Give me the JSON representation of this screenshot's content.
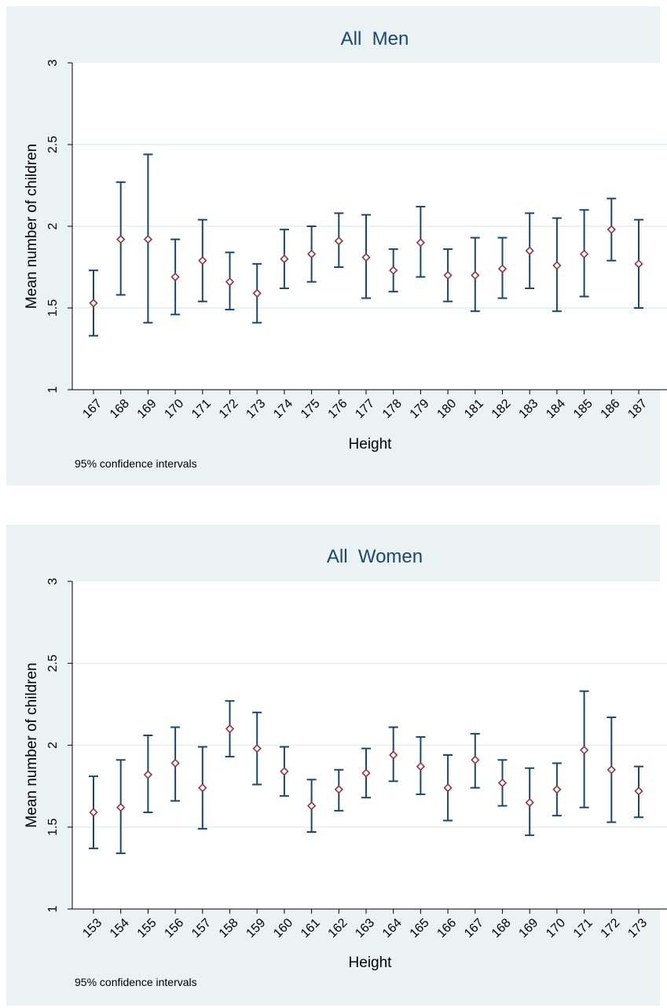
{
  "chart_data": [
    {
      "type": "errorbar",
      "title": "All  Men",
      "xlabel": "Height",
      "ylabel": "Mean number of children",
      "note": "95% confidence intervals",
      "ylim": [
        1,
        3
      ],
      "yticks": [
        "1",
        "1.5",
        "2",
        "2.5",
        "3"
      ],
      "grid": true,
      "categories": [
        "167",
        "168",
        "169",
        "170",
        "171",
        "172",
        "173",
        "174",
        "175",
        "176",
        "177",
        "178",
        "179",
        "180",
        "181",
        "182",
        "183",
        "184",
        "185",
        "186",
        "187"
      ],
      "means": [
        1.53,
        1.92,
        1.92,
        1.69,
        1.79,
        1.66,
        1.59,
        1.8,
        1.83,
        1.91,
        1.81,
        1.73,
        1.9,
        1.7,
        1.7,
        1.74,
        1.85,
        1.76,
        1.83,
        1.98,
        1.77
      ],
      "lower": [
        1.33,
        1.58,
        1.41,
        1.46,
        1.54,
        1.49,
        1.41,
        1.62,
        1.66,
        1.75,
        1.56,
        1.6,
        1.69,
        1.54,
        1.48,
        1.56,
        1.62,
        1.48,
        1.57,
        1.79,
        1.5
      ],
      "upper": [
        1.73,
        2.27,
        2.44,
        1.92,
        2.04,
        1.84,
        1.77,
        1.98,
        2.0,
        2.08,
        2.07,
        1.86,
        2.12,
        1.86,
        1.93,
        1.93,
        2.08,
        2.05,
        2.1,
        2.17,
        2.04
      ]
    },
    {
      "type": "errorbar",
      "title": "All  Women",
      "xlabel": "Height",
      "ylabel": "Mean number of children",
      "note": "95% confidence intervals",
      "ylim": [
        1,
        3
      ],
      "yticks": [
        "1",
        "1.5",
        "2",
        "2.5",
        "3"
      ],
      "grid": true,
      "categories": [
        "153",
        "154",
        "155",
        "156",
        "157",
        "158",
        "159",
        "160",
        "161",
        "162",
        "163",
        "164",
        "165",
        "166",
        "167",
        "168",
        "169",
        "170",
        "171",
        "172",
        "173"
      ],
      "means": [
        1.59,
        1.62,
        1.82,
        1.89,
        1.74,
        2.1,
        1.98,
        1.84,
        1.63,
        1.73,
        1.83,
        1.94,
        1.87,
        1.74,
        1.91,
        1.77,
        1.65,
        1.73,
        1.97,
        1.85,
        1.72
      ],
      "lower": [
        1.37,
        1.34,
        1.59,
        1.66,
        1.49,
        1.93,
        1.76,
        1.69,
        1.47,
        1.6,
        1.68,
        1.78,
        1.7,
        1.54,
        1.74,
        1.63,
        1.45,
        1.57,
        1.62,
        1.53,
        1.56
      ],
      "upper": [
        1.81,
        1.91,
        2.06,
        2.11,
        1.99,
        2.27,
        2.2,
        1.99,
        1.79,
        1.85,
        1.98,
        2.11,
        2.05,
        1.94,
        2.07,
        1.91,
        1.86,
        1.89,
        2.33,
        2.17,
        1.87
      ]
    }
  ],
  "colors": {
    "panel_bg": "#eaf2f3",
    "plot_bg": "#ffffff",
    "bar": "#1a476f",
    "marker": "#90353b",
    "grid": "#eaf2f3",
    "axis": "#000000"
  }
}
